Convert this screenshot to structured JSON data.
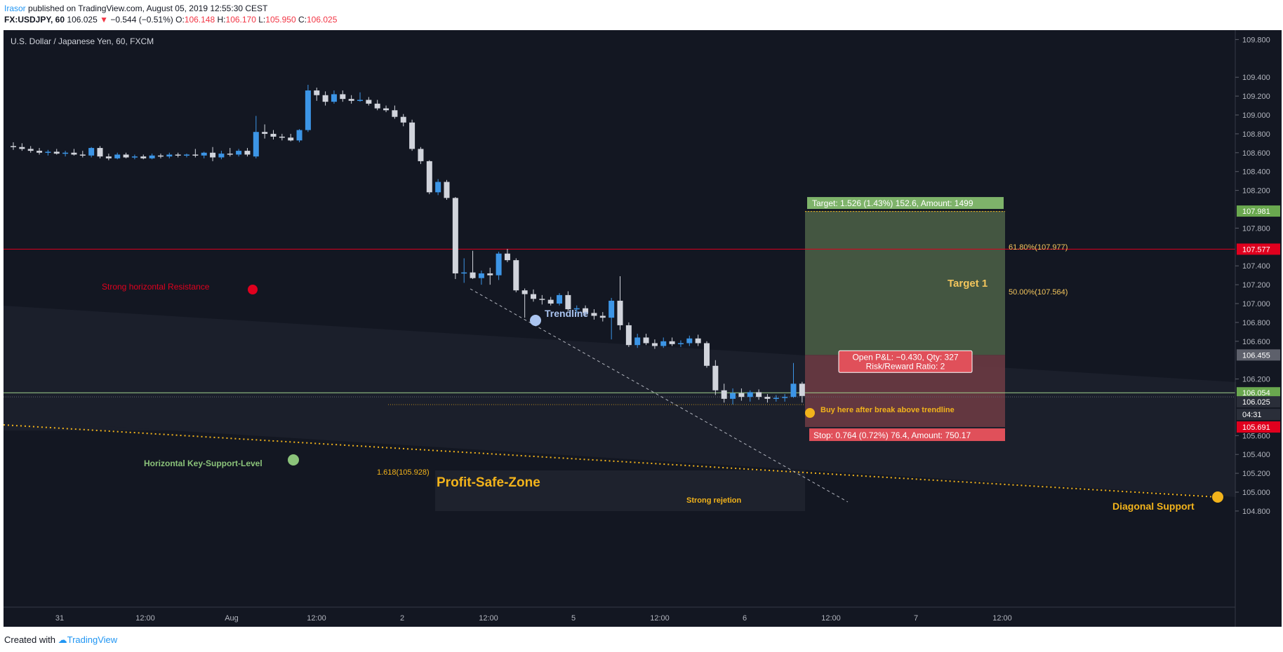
{
  "header": {
    "user": "Irasor",
    "published": "published on TradingView.com, August 05, 2019 12:55:30 CEST",
    "symbol": "FX:USDJPY, 60",
    "last": "106.025",
    "change": "−0.544 (−0.51%)",
    "o_label": "O:",
    "o": "106.148",
    "h_label": "H:",
    "h": "106.170",
    "l_label": "L:",
    "l": "105.950",
    "c_label": "C:",
    "c": "106.025"
  },
  "footer": {
    "created": "Created with",
    "brand": "TradingView"
  },
  "colors": {
    "background": "#131722",
    "up": "#3c95e6",
    "down": "#d1d4dc",
    "target_zone": "#4a5d45",
    "stop_zone": "#6b3a42",
    "resistance": "#e0001e",
    "orange": "#f2b31b",
    "support_green": "#6aa84f"
  },
  "chart_data": {
    "type": "candlestick",
    "instrument": "U.S. Dollar / Japanese Yen, 60, FXCM",
    "y_range": [
      104.7,
      110.0
    ],
    "y_ticks": [
      "109.800",
      "109.400",
      "109.200",
      "109.000",
      "108.800",
      "108.600",
      "108.400",
      "108.200",
      "107.800",
      "107.400",
      "107.200",
      "107.000",
      "106.800",
      "106.600",
      "106.200",
      "105.600",
      "105.400",
      "105.200",
      "105.000",
      "104.800"
    ],
    "x_ticks": [
      "31",
      "12:00",
      "Aug",
      "12:00",
      "2",
      "12:00",
      "5",
      "12:00",
      "6",
      "12:00",
      "7",
      "12:00"
    ],
    "candles": [
      {
        "o": 108.67,
        "h": 108.71,
        "l": 108.63,
        "c": 108.66
      },
      {
        "o": 108.66,
        "h": 108.7,
        "l": 108.62,
        "c": 108.64
      },
      {
        "o": 108.64,
        "h": 108.67,
        "l": 108.6,
        "c": 108.62
      },
      {
        "o": 108.62,
        "h": 108.65,
        "l": 108.58,
        "c": 108.6
      },
      {
        "o": 108.6,
        "h": 108.63,
        "l": 108.57,
        "c": 108.61
      },
      {
        "o": 108.61,
        "h": 108.64,
        "l": 108.58,
        "c": 108.59
      },
      {
        "o": 108.59,
        "h": 108.62,
        "l": 108.56,
        "c": 108.6
      },
      {
        "o": 108.6,
        "h": 108.64,
        "l": 108.57,
        "c": 108.58
      },
      {
        "o": 108.58,
        "h": 108.62,
        "l": 108.55,
        "c": 108.57
      },
      {
        "o": 108.57,
        "h": 108.66,
        "l": 108.55,
        "c": 108.65
      },
      {
        "o": 108.65,
        "h": 108.67,
        "l": 108.54,
        "c": 108.56
      },
      {
        "o": 108.56,
        "h": 108.59,
        "l": 108.52,
        "c": 108.54
      },
      {
        "o": 108.54,
        "h": 108.6,
        "l": 108.53,
        "c": 108.58
      },
      {
        "o": 108.58,
        "h": 108.6,
        "l": 108.54,
        "c": 108.55
      },
      {
        "o": 108.55,
        "h": 108.58,
        "l": 108.53,
        "c": 108.56
      },
      {
        "o": 108.56,
        "h": 108.58,
        "l": 108.53,
        "c": 108.54
      },
      {
        "o": 108.54,
        "h": 108.59,
        "l": 108.53,
        "c": 108.57
      },
      {
        "o": 108.57,
        "h": 108.59,
        "l": 108.54,
        "c": 108.56
      },
      {
        "o": 108.56,
        "h": 108.6,
        "l": 108.54,
        "c": 108.58
      },
      {
        "o": 108.58,
        "h": 108.6,
        "l": 108.55,
        "c": 108.57
      },
      {
        "o": 108.57,
        "h": 108.59,
        "l": 108.55,
        "c": 108.58
      },
      {
        "o": 108.58,
        "h": 108.64,
        "l": 108.55,
        "c": 108.57
      },
      {
        "o": 108.57,
        "h": 108.61,
        "l": 108.54,
        "c": 108.6
      },
      {
        "o": 108.6,
        "h": 108.66,
        "l": 108.51,
        "c": 108.55
      },
      {
        "o": 108.55,
        "h": 108.62,
        "l": 108.53,
        "c": 108.59
      },
      {
        "o": 108.59,
        "h": 108.65,
        "l": 108.56,
        "c": 108.58
      },
      {
        "o": 108.58,
        "h": 108.64,
        "l": 108.56,
        "c": 108.62
      },
      {
        "o": 108.62,
        "h": 108.65,
        "l": 108.56,
        "c": 108.58
      },
      {
        "o": 108.56,
        "h": 108.99,
        "l": 108.54,
        "c": 108.82
      },
      {
        "o": 108.82,
        "h": 108.9,
        "l": 108.75,
        "c": 108.8
      },
      {
        "o": 108.8,
        "h": 108.84,
        "l": 108.74,
        "c": 108.77
      },
      {
        "o": 108.77,
        "h": 108.8,
        "l": 108.73,
        "c": 108.76
      },
      {
        "o": 108.76,
        "h": 108.8,
        "l": 108.72,
        "c": 108.73
      },
      {
        "o": 108.73,
        "h": 108.85,
        "l": 108.71,
        "c": 108.84
      },
      {
        "o": 108.84,
        "h": 109.32,
        "l": 108.82,
        "c": 109.26
      },
      {
        "o": 109.26,
        "h": 109.29,
        "l": 109.15,
        "c": 109.21
      },
      {
        "o": 109.21,
        "h": 109.25,
        "l": 109.1,
        "c": 109.14
      },
      {
        "o": 109.14,
        "h": 109.26,
        "l": 109.12,
        "c": 109.22
      },
      {
        "o": 109.22,
        "h": 109.26,
        "l": 109.14,
        "c": 109.17
      },
      {
        "o": 109.17,
        "h": 109.21,
        "l": 109.12,
        "c": 109.15
      },
      {
        "o": 109.15,
        "h": 109.24,
        "l": 109.14,
        "c": 109.16
      },
      {
        "o": 109.16,
        "h": 109.19,
        "l": 109.1,
        "c": 109.12
      },
      {
        "o": 109.12,
        "h": 109.16,
        "l": 109.05,
        "c": 109.07
      },
      {
        "o": 109.07,
        "h": 109.1,
        "l": 109.03,
        "c": 109.05
      },
      {
        "o": 109.05,
        "h": 109.1,
        "l": 108.96,
        "c": 108.98
      },
      {
        "o": 108.98,
        "h": 109.01,
        "l": 108.88,
        "c": 108.92
      },
      {
        "o": 108.92,
        "h": 108.95,
        "l": 108.62,
        "c": 108.64
      },
      {
        "o": 108.64,
        "h": 108.66,
        "l": 108.48,
        "c": 108.51
      },
      {
        "o": 108.51,
        "h": 108.52,
        "l": 108.16,
        "c": 108.18
      },
      {
        "o": 108.18,
        "h": 108.32,
        "l": 108.15,
        "c": 108.29
      },
      {
        "o": 108.29,
        "h": 108.31,
        "l": 108.1,
        "c": 108.12
      },
      {
        "o": 108.12,
        "h": 108.13,
        "l": 107.26,
        "c": 107.32
      },
      {
        "o": 107.32,
        "h": 107.48,
        "l": 107.22,
        "c": 107.33
      },
      {
        "o": 107.33,
        "h": 107.56,
        "l": 107.26,
        "c": 107.27
      },
      {
        "o": 107.27,
        "h": 107.35,
        "l": 107.2,
        "c": 107.32
      },
      {
        "o": 107.32,
        "h": 107.38,
        "l": 107.2,
        "c": 107.3
      },
      {
        "o": 107.3,
        "h": 107.55,
        "l": 107.25,
        "c": 107.53
      },
      {
        "o": 107.53,
        "h": 107.58,
        "l": 107.44,
        "c": 107.46
      },
      {
        "o": 107.46,
        "h": 107.48,
        "l": 107.12,
        "c": 107.14
      },
      {
        "o": 107.14,
        "h": 107.16,
        "l": 106.85,
        "c": 107.1
      },
      {
        "o": 107.1,
        "h": 107.15,
        "l": 107.02,
        "c": 107.05
      },
      {
        "o": 107.05,
        "h": 107.09,
        "l": 106.99,
        "c": 107.04
      },
      {
        "o": 107.04,
        "h": 107.07,
        "l": 106.98,
        "c": 107.0
      },
      {
        "o": 107.0,
        "h": 107.11,
        "l": 106.98,
        "c": 107.09
      },
      {
        "o": 107.09,
        "h": 107.13,
        "l": 106.92,
        "c": 106.94
      },
      {
        "o": 106.94,
        "h": 106.98,
        "l": 106.9,
        "c": 106.95
      },
      {
        "o": 106.95,
        "h": 106.98,
        "l": 106.87,
        "c": 106.9
      },
      {
        "o": 106.9,
        "h": 106.94,
        "l": 106.83,
        "c": 106.87
      },
      {
        "o": 106.87,
        "h": 106.91,
        "l": 106.81,
        "c": 106.85
      },
      {
        "o": 106.85,
        "h": 107.06,
        "l": 106.62,
        "c": 107.03
      },
      {
        "o": 107.03,
        "h": 107.29,
        "l": 106.72,
        "c": 106.77
      },
      {
        "o": 106.77,
        "h": 106.8,
        "l": 106.54,
        "c": 106.56
      },
      {
        "o": 106.56,
        "h": 106.68,
        "l": 106.53,
        "c": 106.64
      },
      {
        "o": 106.64,
        "h": 106.68,
        "l": 106.56,
        "c": 106.58
      },
      {
        "o": 106.58,
        "h": 106.62,
        "l": 106.52,
        "c": 106.55
      },
      {
        "o": 106.55,
        "h": 106.64,
        "l": 106.53,
        "c": 106.6
      },
      {
        "o": 106.6,
        "h": 106.64,
        "l": 106.55,
        "c": 106.57
      },
      {
        "o": 106.57,
        "h": 106.61,
        "l": 106.54,
        "c": 106.58
      },
      {
        "o": 106.58,
        "h": 106.66,
        "l": 106.55,
        "c": 106.63
      },
      {
        "o": 106.63,
        "h": 106.67,
        "l": 106.55,
        "c": 106.58
      },
      {
        "o": 106.58,
        "h": 106.6,
        "l": 106.32,
        "c": 106.34
      },
      {
        "o": 106.34,
        "h": 106.4,
        "l": 106.03,
        "c": 106.08
      },
      {
        "o": 106.08,
        "h": 106.15,
        "l": 105.95,
        "c": 105.99
      },
      {
        "o": 105.99,
        "h": 106.1,
        "l": 105.93,
        "c": 106.05
      },
      {
        "o": 106.05,
        "h": 106.1,
        "l": 105.97,
        "c": 106.01
      },
      {
        "o": 106.01,
        "h": 106.08,
        "l": 105.96,
        "c": 106.06
      },
      {
        "o": 106.06,
        "h": 106.09,
        "l": 105.98,
        "c": 106.01
      },
      {
        "o": 106.01,
        "h": 106.04,
        "l": 105.95,
        "c": 105.99
      },
      {
        "o": 105.99,
        "h": 106.03,
        "l": 105.96,
        "c": 106.0
      },
      {
        "o": 106.0,
        "h": 106.04,
        "l": 105.96,
        "c": 106.01
      },
      {
        "o": 106.01,
        "h": 106.37,
        "l": 106.0,
        "c": 106.15
      },
      {
        "o": 106.15,
        "h": 106.17,
        "l": 105.95,
        "c": 106.02
      }
    ],
    "horizontal_levels": {
      "resistance": 107.577,
      "support": 106.054,
      "last_price": 106.025
    },
    "price_labels": [
      {
        "value": "107.981",
        "color": "#6aa84f"
      },
      {
        "value": "107.577",
        "color": "#e0001e"
      },
      {
        "value": "106.455",
        "color": "#5d606b"
      },
      {
        "value": "106.054",
        "color": "#6aa84f"
      },
      {
        "value": "106.025",
        "color": "#2a2e39"
      },
      {
        "value": "04:31",
        "color": "#2a2e39"
      },
      {
        "value": "105.691",
        "color": "#e0001e"
      }
    ],
    "position": {
      "entry": 106.455,
      "target": 107.981,
      "stop": 105.691,
      "target_label": "Target: 1.526 (1.43%) 152.6, Amount: 1499",
      "stop_label": "Stop: 0.764 (0.72%) 76.4, Amount: 750.17",
      "pnl_label": "Open P&L: −0.430, Qty: 327",
      "rr_label": "Risk/Reward Ratio: 2"
    },
    "fib_levels": [
      {
        "label": "61.80%(107.977)",
        "value": 107.977
      },
      {
        "label": "50.00%(107.564)",
        "value": 107.564
      },
      {
        "label": "1.618(105.928)",
        "value": 105.928
      }
    ],
    "annotations": {
      "resistance": "Strong horizontal Resistance",
      "trendline": "Trendline",
      "target1": "Target 1",
      "buy_here": "Buy here after break above trendline",
      "key_support": "Horizontal Key-Support-Level",
      "profit_zone": "Profit-Safe-Zone",
      "rejection": "Strong rejetion",
      "diagonal": "Diagonal Support"
    }
  }
}
